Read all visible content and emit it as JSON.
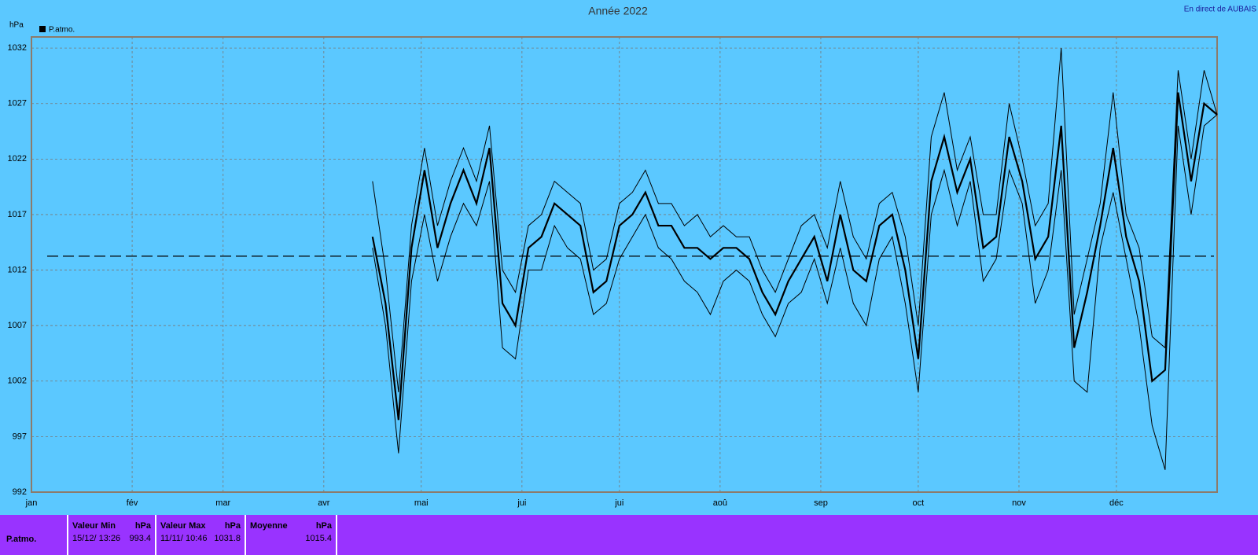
{
  "chart_data": {
    "type": "line",
    "title": "Année 2022",
    "y_unit": "hPa",
    "source": "En direct de AUBAIS",
    "xlim": [
      0,
      365
    ],
    "xticks": [
      {
        "value": 0,
        "label": "jan"
      },
      {
        "value": 31,
        "label": "fév"
      },
      {
        "value": 59,
        "label": "mar"
      },
      {
        "value": 90,
        "label": "avr"
      },
      {
        "value": 120,
        "label": "mai"
      },
      {
        "value": 151,
        "label": "jui"
      },
      {
        "value": 181,
        "label": "jui"
      },
      {
        "value": 212,
        "label": "aoû"
      },
      {
        "value": 243,
        "label": "sep"
      },
      {
        "value": 273,
        "label": "oct"
      },
      {
        "value": 304,
        "label": "nov"
      },
      {
        "value": 334,
        "label": "déc"
      }
    ],
    "ylim": [
      992,
      1033
    ],
    "yticks": [
      992,
      997,
      1002,
      1007,
      1012,
      1017,
      1022,
      1027,
      1032
    ],
    "grid": true,
    "reference_line": 1013.25,
    "x": [
      105,
      109,
      113,
      117,
      121,
      125,
      129,
      133,
      137,
      141,
      145,
      149,
      153,
      157,
      161,
      165,
      169,
      173,
      177,
      181,
      185,
      189,
      193,
      197,
      201,
      205,
      209,
      213,
      217,
      221,
      225,
      229,
      233,
      237,
      241,
      245,
      249,
      253,
      257,
      261,
      265,
      269,
      273,
      277,
      281,
      285,
      289,
      293,
      297,
      301,
      305,
      309,
      313,
      317,
      321,
      325,
      329,
      333,
      337,
      341,
      345,
      349,
      353,
      357,
      361,
      365
    ],
    "series": [
      {
        "name": "P.atmo.",
        "color": "#000000",
        "values": [
          1015,
          1009,
          998.5,
          1014,
          1021,
          1014,
          1018,
          1021,
          1018,
          1023,
          1009,
          1007,
          1014,
          1015,
          1018,
          1017,
          1016,
          1010,
          1011,
          1016,
          1017,
          1019,
          1016,
          1016,
          1014,
          1014,
          1013,
          1014,
          1014,
          1013,
          1010,
          1008,
          1011,
          1013,
          1015,
          1011,
          1017,
          1012,
          1011,
          1016,
          1017,
          1012,
          1004,
          1020,
          1024,
          1019,
          1022,
          1014,
          1015,
          1024,
          1020,
          1013,
          1015,
          1025,
          1005,
          1010,
          1016,
          1023,
          1015,
          1011,
          1002,
          1003,
          1028,
          1020,
          1027,
          1026
        ],
        "max_values": [
          1020,
          1012,
          1001,
          1016,
          1023,
          1016,
          1020,
          1023,
          1020,
          1025,
          1012,
          1010,
          1016,
          1017,
          1020,
          1019,
          1018,
          1012,
          1013,
          1018,
          1019,
          1021,
          1018,
          1018,
          1016,
          1017,
          1015,
          1016,
          1015,
          1015,
          1012,
          1010,
          1013,
          1016,
          1017,
          1014,
          1020,
          1015,
          1013,
          1018,
          1019,
          1015,
          1007,
          1024,
          1028,
          1021,
          1024,
          1017,
          1017,
          1027,
          1022,
          1016,
          1018,
          1032,
          1008,
          1013,
          1018,
          1028,
          1017,
          1014,
          1006,
          1005,
          1030,
          1022,
          1030,
          1026
        ],
        "min_values": [
          1014,
          1007,
          995.5,
          1011,
          1017,
          1011,
          1015,
          1018,
          1016,
          1020,
          1005,
          1004,
          1012,
          1012,
          1016,
          1014,
          1013,
          1008,
          1009,
          1013,
          1015,
          1017,
          1014,
          1013,
          1011,
          1010,
          1008,
          1011,
          1012,
          1011,
          1008,
          1006,
          1009,
          1010,
          1013,
          1009,
          1014,
          1009,
          1007,
          1013,
          1015,
          1009,
          1001,
          1017,
          1021,
          1016,
          1020,
          1011,
          1013,
          1021,
          1018,
          1009,
          1012,
          1021,
          1002,
          1001,
          1014,
          1019,
          1013,
          1007,
          998,
          994,
          1025,
          1017,
          1025,
          1026
        ]
      }
    ],
    "legend": "top-left",
    "stats_panel": {
      "row_label": "P.atmo.",
      "stats": [
        {
          "label": "Valeur Min",
          "unit": "hPa",
          "date": "15/12/  13:26",
          "value": 993.4
        },
        {
          "label": "Valeur Max",
          "unit": "hPa",
          "date": "11/11/  10:46",
          "value": 1031.8
        },
        {
          "label": "Moyenne",
          "unit": "hPa",
          "value": 1015.4
        }
      ]
    }
  }
}
